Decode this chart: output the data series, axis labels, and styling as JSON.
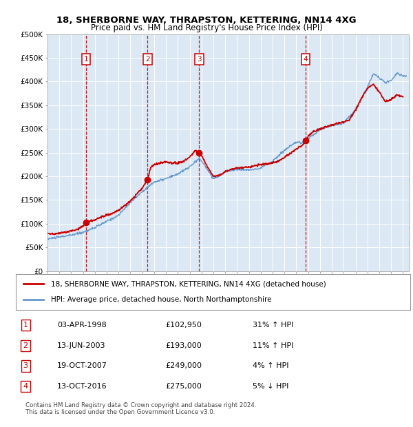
{
  "title": "18, SHERBORNE WAY, THRAPSTON, KETTERING, NN14 4XG",
  "subtitle": "Price paid vs. HM Land Registry's House Price Index (HPI)",
  "plot_bg_color": "#dce9f5",
  "ylim": [
    0,
    500000
  ],
  "yticks": [
    0,
    50000,
    100000,
    150000,
    200000,
    250000,
    300000,
    350000,
    400000,
    450000,
    500000
  ],
  "ytick_labels": [
    "£0",
    "£50K",
    "£100K",
    "£150K",
    "£200K",
    "£250K",
    "£300K",
    "£350K",
    "£400K",
    "£450K",
    "£500K"
  ],
  "xlim_start": 1995.0,
  "xlim_end": 2025.5,
  "hpi_line_color": "#6699cc",
  "price_line_color": "#cc0000",
  "sale_marker_color": "#cc0000",
  "vline_color": "#cc0000",
  "box_color": "#cc0000",
  "legend_line1": "18, SHERBORNE WAY, THRAPSTON, KETTERING, NN14 4XG (detached house)",
  "legend_line2": "HPI: Average price, detached house, North Northamptonshire",
  "sales": [
    {
      "num": 1,
      "year": 1998.25,
      "price": 102950,
      "label": "03-APR-1998",
      "price_str": "£102,950",
      "hpi_pct": "31%",
      "hpi_dir": "↑"
    },
    {
      "num": 2,
      "year": 2003.45,
      "price": 193000,
      "label": "13-JUN-2003",
      "price_str": "£193,000",
      "hpi_pct": "11%",
      "hpi_dir": "↑"
    },
    {
      "num": 3,
      "year": 2007.8,
      "price": 249000,
      "label": "19-OCT-2007",
      "price_str": "£249,000",
      "hpi_pct": "4%",
      "hpi_dir": "↑"
    },
    {
      "num": 4,
      "year": 2016.79,
      "price": 275000,
      "label": "13-OCT-2016",
      "price_str": "£275,000",
      "hpi_pct": "5%",
      "hpi_dir": "↓"
    }
  ],
  "footer1": "Contains HM Land Registry data © Crown copyright and database right 2024.",
  "footer2": "This data is licensed under the Open Government Licence v3.0."
}
